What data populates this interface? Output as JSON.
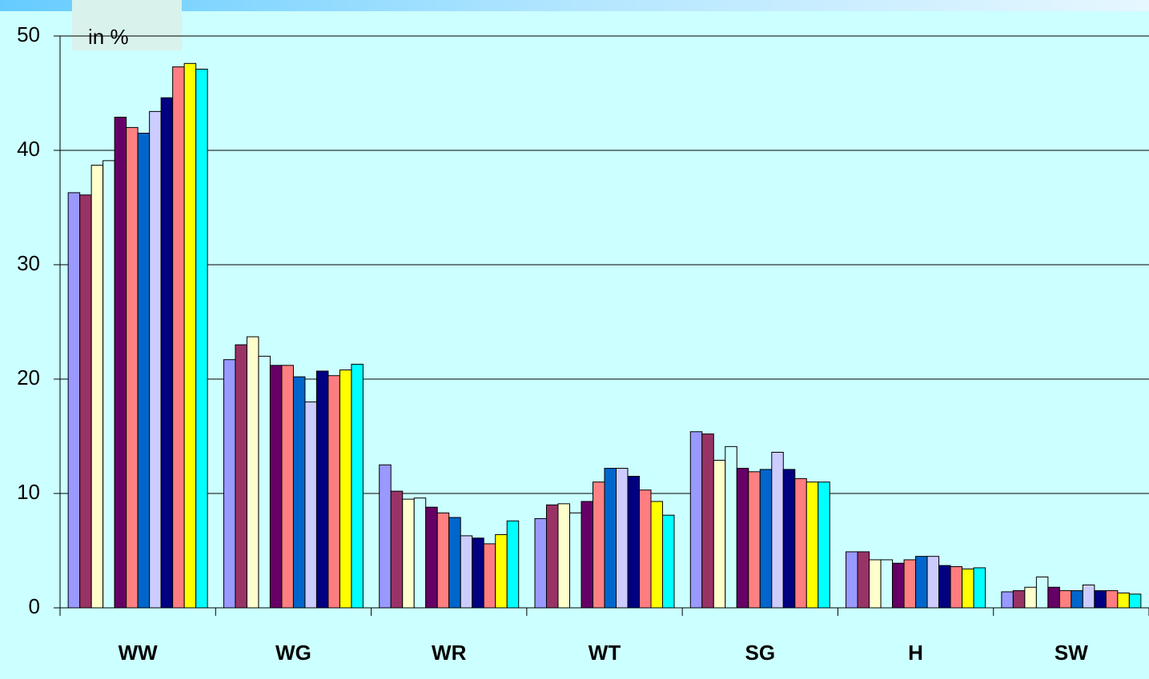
{
  "chart_data": {
    "type": "bar",
    "unit_label": "in %",
    "categories": [
      "WW",
      "WG",
      "WR",
      "WT",
      "SG",
      "H",
      "SW"
    ],
    "ylim": [
      0,
      50
    ],
    "yticks": [
      0,
      10,
      20,
      30,
      40,
      50
    ],
    "grid": true,
    "series": [
      {
        "color": "#9999ff",
        "values": [
          36.3,
          21.7,
          12.5,
          7.8,
          15.4,
          4.9,
          1.4
        ]
      },
      {
        "color": "#993366",
        "values": [
          36.1,
          23.0,
          10.2,
          9.0,
          15.2,
          4.9,
          1.5
        ]
      },
      {
        "color": "#ffffcc",
        "values": [
          38.7,
          23.7,
          9.5,
          9.1,
          12.9,
          4.2,
          1.8
        ]
      },
      {
        "color": "#ccffff",
        "values": [
          39.1,
          22.0,
          9.6,
          8.3,
          14.1,
          4.2,
          2.7
        ]
      },
      {
        "color": "#660066",
        "values": [
          42.9,
          21.2,
          8.8,
          9.3,
          12.2,
          3.9,
          1.8
        ]
      },
      {
        "color": "#ff8080",
        "values": [
          42.0,
          21.2,
          8.3,
          11.0,
          11.9,
          4.2,
          1.5
        ]
      },
      {
        "color": "#0066cc",
        "values": [
          41.5,
          20.2,
          7.9,
          12.2,
          12.1,
          4.5,
          1.5
        ]
      },
      {
        "color": "#ccccff",
        "values": [
          43.4,
          18.0,
          6.3,
          12.2,
          13.6,
          4.5,
          2.0
        ]
      },
      {
        "color": "#000080",
        "values": [
          44.6,
          20.7,
          6.1,
          11.5,
          12.1,
          3.7,
          1.5
        ]
      },
      {
        "color": "#ff7c80",
        "values": [
          47.3,
          20.3,
          5.6,
          10.3,
          11.3,
          3.6,
          1.5
        ]
      },
      {
        "color": "#ffff00",
        "values": [
          47.6,
          20.8,
          6.4,
          9.3,
          11.0,
          3.4,
          1.3
        ]
      },
      {
        "color": "#00ffff",
        "values": [
          47.1,
          21.3,
          7.6,
          8.1,
          11.0,
          3.5,
          1.2
        ]
      }
    ]
  }
}
